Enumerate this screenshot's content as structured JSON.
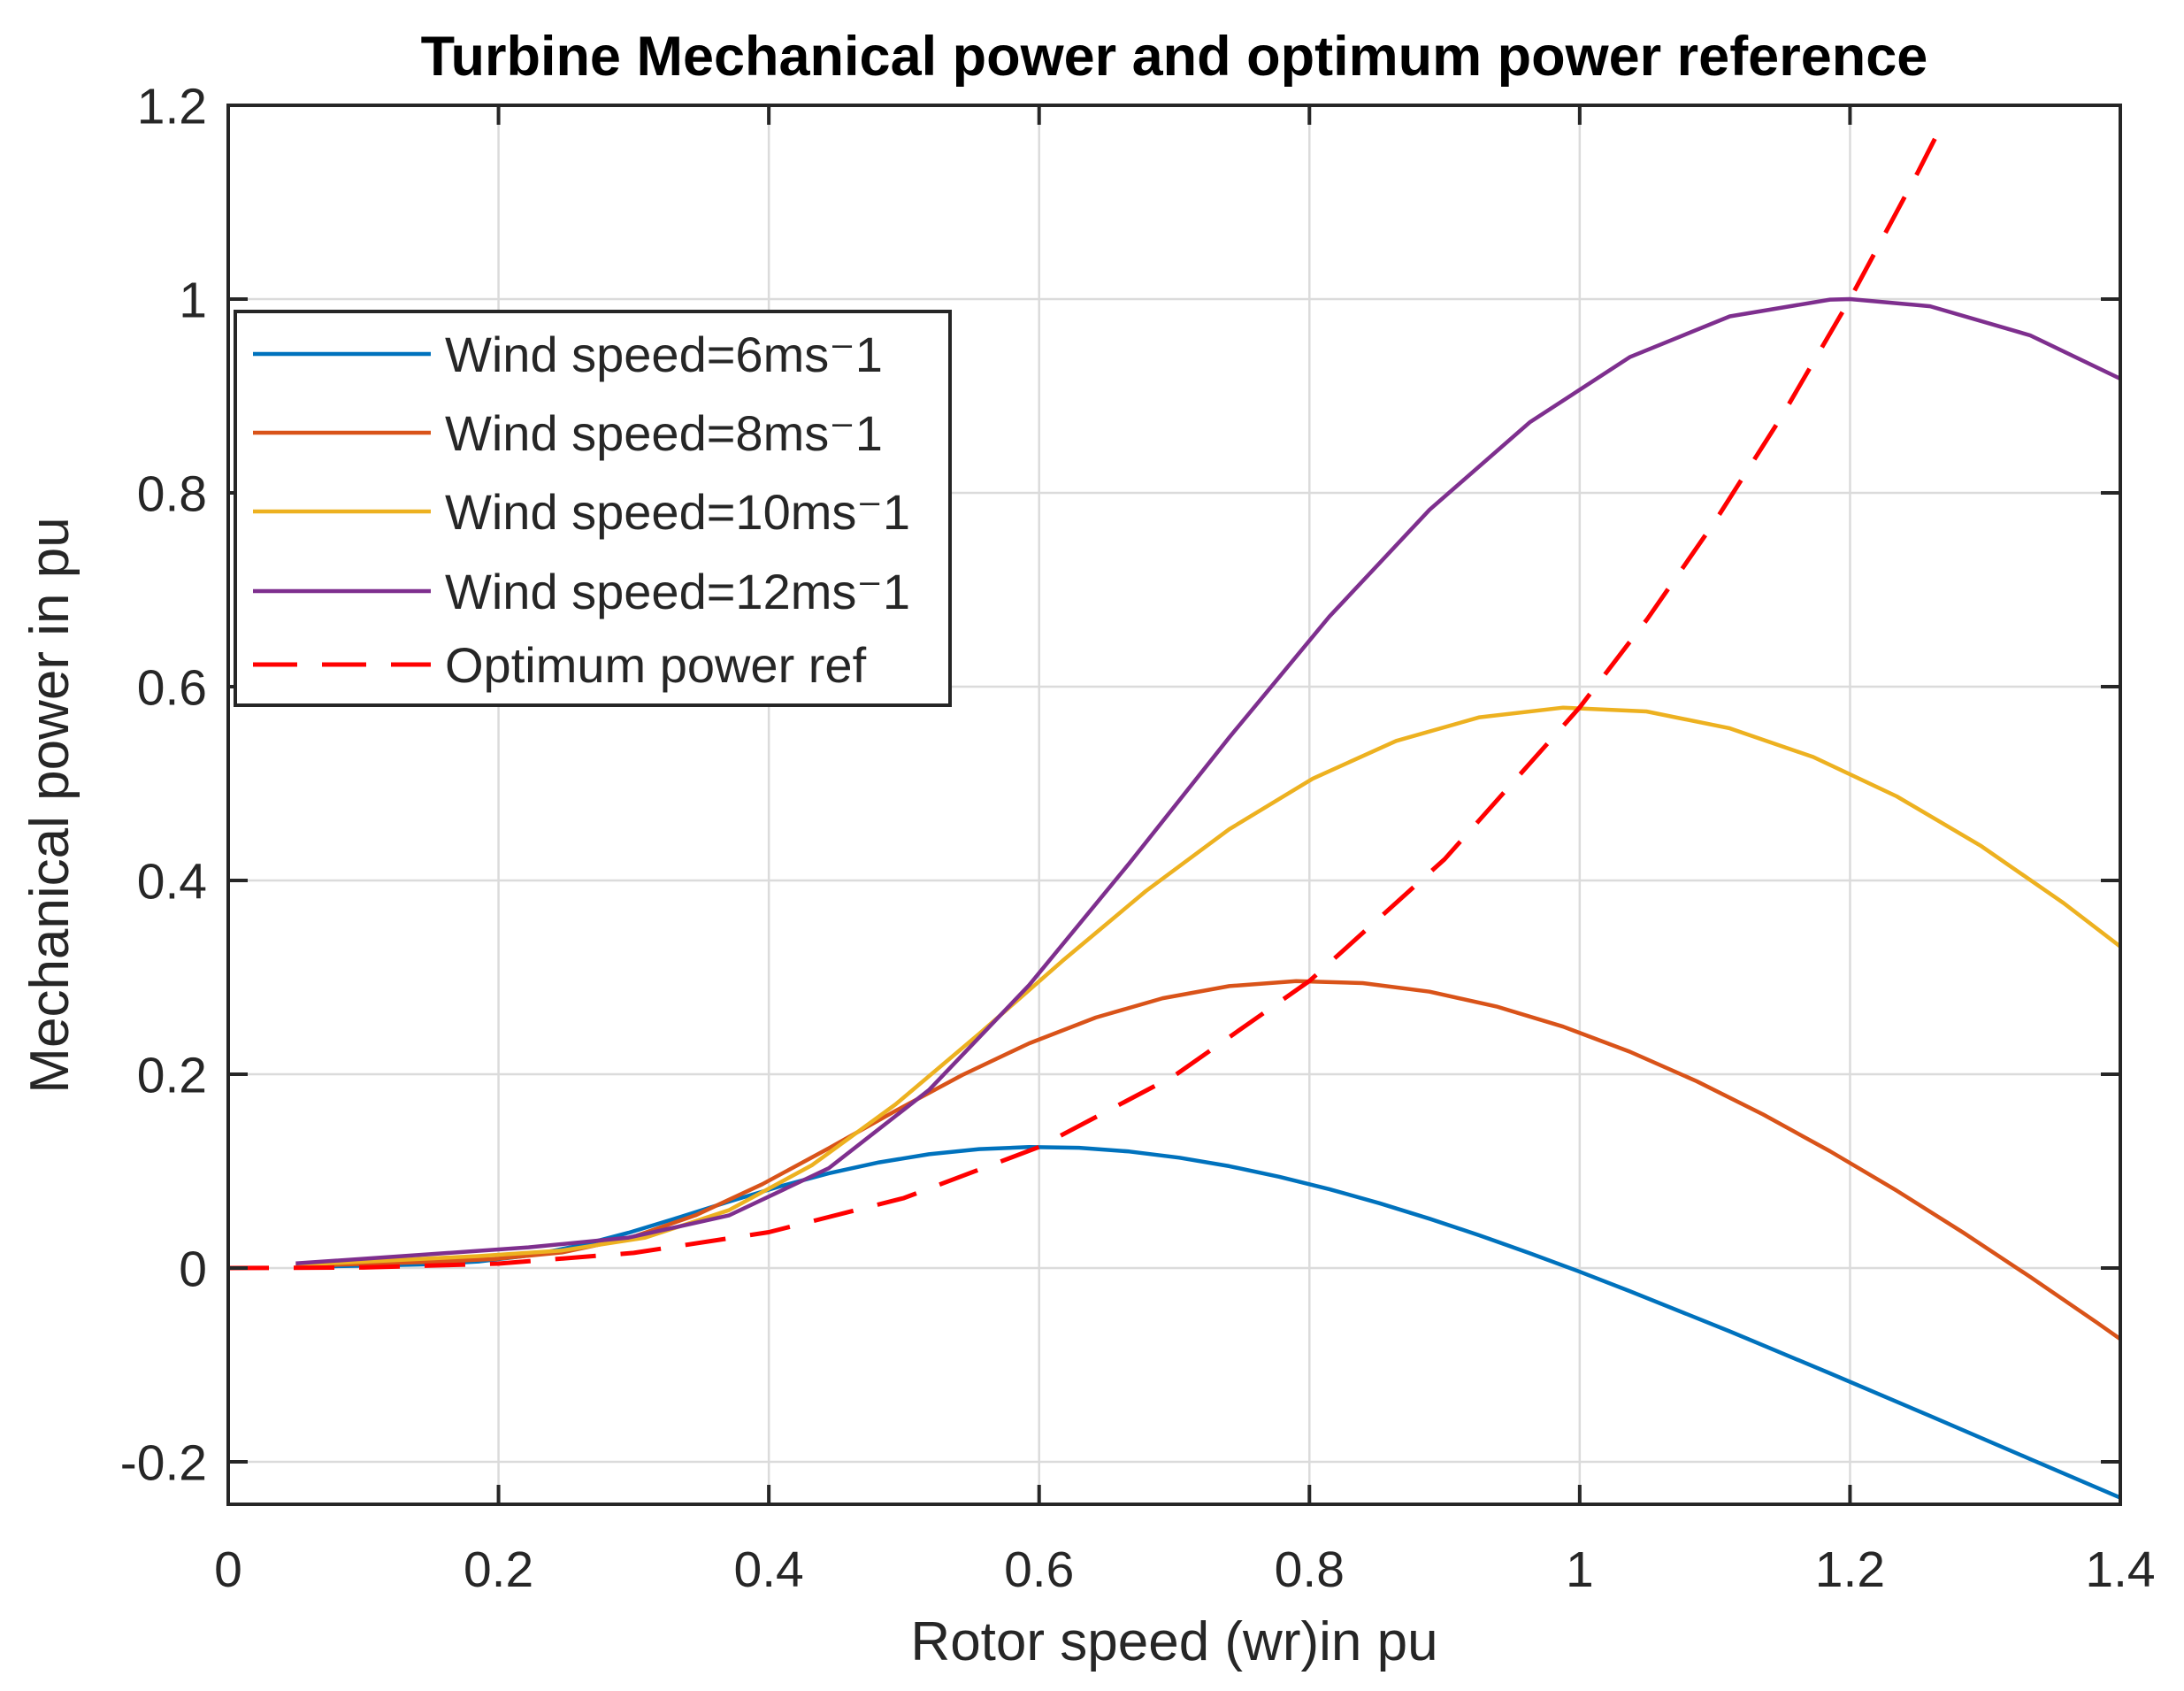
{
  "chart_data": {
    "type": "line",
    "title": "Turbine Mechanical power and optimum power reference",
    "xlabel": "Rotor speed (wr)in pu",
    "ylabel": "Mechanical power in pu",
    "xlim": [
      0,
      1.4
    ],
    "ylim": [
      -0.2438,
      1.2
    ],
    "xticks": [
      0,
      0.2,
      0.4,
      0.6,
      0.8,
      1,
      1.2,
      1.4
    ],
    "xtick_labels": [
      "0",
      "0.2",
      "0.4",
      "0.6",
      "0.8",
      "1",
      "1.2",
      "1.4"
    ],
    "yticks": [
      -0.2,
      0,
      0.2,
      0.4,
      0.6,
      0.8,
      1,
      1.2
    ],
    "ytick_labels": [
      "-0.2",
      "0",
      "0.2",
      "0.4",
      "0.6",
      "0.8",
      "1",
      "1.2"
    ],
    "grid": true,
    "grid_color": "#dbdbdb",
    "axis_color": "#262626",
    "legend_position": "upper-left-inside",
    "series": [
      {
        "name": "Wind speed=6ms⁻1",
        "color": "#0072BD",
        "line_style": "solid",
        "points": [
          [
            0.05,
            0.0012
          ],
          [
            0.0741,
            0.0018
          ],
          [
            0.1111,
            0.0027
          ],
          [
            0.1481,
            0.0039
          ],
          [
            0.1852,
            0.0068
          ],
          [
            0.2222,
            0.0129
          ],
          [
            0.2593,
            0.023
          ],
          [
            0.2963,
            0.0365
          ],
          [
            0.3333,
            0.0522
          ],
          [
            0.3704,
            0.0685
          ],
          [
            0.4074,
            0.084
          ],
          [
            0.4444,
            0.0978
          ],
          [
            0.4815,
            0.1091
          ],
          [
            0.5185,
            0.1175
          ],
          [
            0.5556,
            0.1228
          ],
          [
            0.5926,
            0.1249
          ],
          [
            0.6296,
            0.1241
          ],
          [
            0.6667,
            0.1203
          ],
          [
            0.7037,
            0.1139
          ],
          [
            0.7407,
            0.1051
          ],
          [
            0.7778,
            0.0942
          ],
          [
            0.8148,
            0.0814
          ],
          [
            0.8519,
            0.0669
          ],
          [
            0.8889,
            0.0509
          ],
          [
            0.9259,
            0.0337
          ],
          [
            0.963,
            0.0154
          ],
          [
            1.0,
            -0.0038
          ],
          [
            1.037,
            -0.0238
          ],
          [
            1.1111,
            -0.0654
          ],
          [
            1.1852,
            -0.1086
          ],
          [
            1.2593,
            -0.1527
          ],
          [
            1.3333,
            -0.1971
          ],
          [
            1.4,
            -0.237
          ]
        ]
      },
      {
        "name": "Wind speed=8ms⁻1",
        "color": "#D95319",
        "line_style": "solid",
        "points": [
          [
            0.05,
            0.0021
          ],
          [
            0.0988,
            0.0042
          ],
          [
            0.1481,
            0.0063
          ],
          [
            0.1975,
            0.0093
          ],
          [
            0.2469,
            0.0161
          ],
          [
            0.2963,
            0.0306
          ],
          [
            0.3457,
            0.0545
          ],
          [
            0.3951,
            0.0865
          ],
          [
            0.4444,
            0.1237
          ],
          [
            0.4938,
            0.1623
          ],
          [
            0.5432,
            0.1992
          ],
          [
            0.5926,
            0.2319
          ],
          [
            0.642,
            0.2586
          ],
          [
            0.6914,
            0.2785
          ],
          [
            0.7407,
            0.291
          ],
          [
            0.7901,
            0.2962
          ],
          [
            0.8395,
            0.2941
          ],
          [
            0.8889,
            0.2852
          ],
          [
            0.9383,
            0.27
          ],
          [
            0.9877,
            0.2492
          ],
          [
            1.037,
            0.2233
          ],
          [
            1.0864,
            0.1929
          ],
          [
            1.1358,
            0.1585
          ],
          [
            1.1852,
            0.1206
          ],
          [
            1.2346,
            0.0798
          ],
          [
            1.284,
            0.0364
          ],
          [
            1.3333,
            -0.0091
          ],
          [
            1.3827,
            -0.0563
          ],
          [
            1.4,
            -0.0733
          ]
        ]
      },
      {
        "name": "Wind speed=10ms⁻1",
        "color": "#EDB120",
        "line_style": "solid",
        "points": [
          [
            0.05,
            0.0033
          ],
          [
            0.1235,
            0.0082
          ],
          [
            0.1852,
            0.0124
          ],
          [
            0.2469,
            0.0181
          ],
          [
            0.3086,
            0.0314
          ],
          [
            0.3704,
            0.0597
          ],
          [
            0.4321,
            0.1063
          ],
          [
            0.4938,
            0.169
          ],
          [
            0.5556,
            0.2417
          ],
          [
            0.6173,
            0.317
          ],
          [
            0.679,
            0.3891
          ],
          [
            0.7407,
            0.4529
          ],
          [
            0.8025,
            0.5051
          ],
          [
            0.8642,
            0.544
          ],
          [
            0.9259,
            0.5684
          ],
          [
            0.9877,
            0.5784
          ],
          [
            1.0494,
            0.5744
          ],
          [
            1.1111,
            0.557
          ],
          [
            1.1728,
            0.5274
          ],
          [
            1.2346,
            0.4868
          ],
          [
            1.2963,
            0.4362
          ],
          [
            1.358,
            0.3767
          ],
          [
            1.4,
            0.3318
          ]
        ]
      },
      {
        "name": "Wind speed=12ms⁻1",
        "color": "#7E2F8E",
        "line_style": "solid",
        "points": [
          [
            0.05,
            0.0048
          ],
          [
            0.1481,
            0.0142
          ],
          [
            0.2222,
            0.0214
          ],
          [
            0.2963,
            0.0314
          ],
          [
            0.3704,
            0.0543
          ],
          [
            0.4444,
            0.1031
          ],
          [
            0.5185,
            0.1838
          ],
          [
            0.5926,
            0.292
          ],
          [
            0.6667,
            0.4176
          ],
          [
            0.7407,
            0.5477
          ],
          [
            0.8148,
            0.6724
          ],
          [
            0.8889,
            0.7826
          ],
          [
            0.963,
            0.8728
          ],
          [
            1.037,
            0.9401
          ],
          [
            1.1111,
            0.9822
          ],
          [
            1.1852,
            0.9995
          ],
          [
            1.2,
            1.0
          ],
          [
            1.2593,
            0.9926
          ],
          [
            1.3333,
            0.9626
          ],
          [
            1.4,
            0.9178
          ]
        ]
      },
      {
        "name": "Optimum power ref",
        "color": "#FF0000",
        "line_style": "dashed",
        "points": [
          [
            0,
            0
          ],
          [
            0.1,
            0.0006
          ],
          [
            0.2,
            0.0046
          ],
          [
            0.3,
            0.0156
          ],
          [
            0.4,
            0.037
          ],
          [
            0.5,
            0.0723
          ],
          [
            0.6,
            0.125
          ],
          [
            0.7,
            0.1985
          ],
          [
            0.8,
            0.2963
          ],
          [
            0.9,
            0.4219
          ],
          [
            1.0,
            0.5787
          ],
          [
            1.05,
            0.6699
          ],
          [
            1.1,
            0.7703
          ],
          [
            1.15,
            0.8801
          ],
          [
            1.2,
            1.0
          ],
          [
            1.25,
            1.1303
          ],
          [
            1.27,
            1.1852
          ]
        ]
      }
    ]
  }
}
